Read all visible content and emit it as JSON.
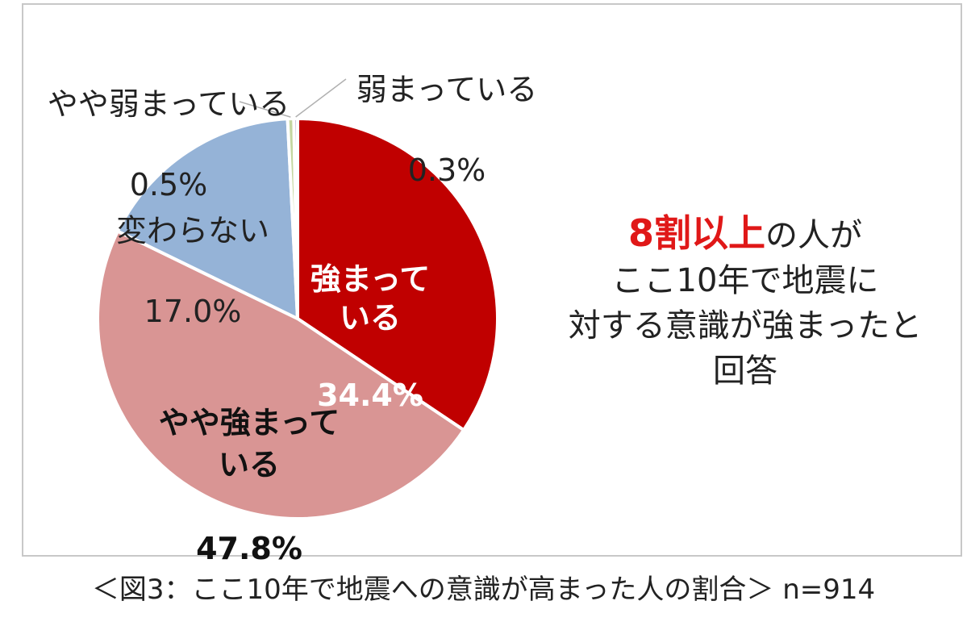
{
  "chart_data": {
    "type": "pie",
    "slices": [
      {
        "category": "強まっている",
        "value": 34.4,
        "label": "34.4%",
        "color": "#c00000"
      },
      {
        "category": "やや強まっている",
        "value": 47.8,
        "label": "47.8%",
        "color": "#d99594"
      },
      {
        "category": "変わらない",
        "value": 17.0,
        "label": "17.0%",
        "color": "#95b3d7"
      },
      {
        "category": "やや弱まっている",
        "value": 0.5,
        "label": "0.5%",
        "color": "#c4d6a0"
      },
      {
        "category": "弱まっている",
        "value": 0.3,
        "label": "0.3%",
        "color": "#b3a2c7"
      }
    ]
  },
  "annotation": {
    "highlight": "8割以上",
    "line1_rest": "の人が",
    "line2": "ここ10年で地震に",
    "line3": "対する意識が強まったと",
    "line4": "回答"
  },
  "caption": "＜図3：ここ10年で地震への意識が高まった人の割合＞ n=914"
}
